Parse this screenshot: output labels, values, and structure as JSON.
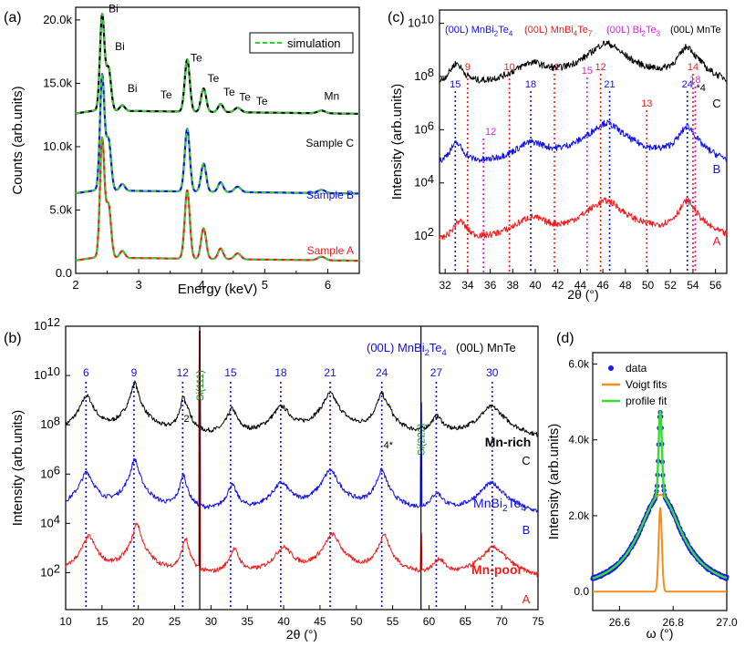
{
  "figure": {
    "panels": {
      "a": {
        "tag": "(a)",
        "xlabel": "Energy (keV)",
        "ylabel": "Counts (arb.units)",
        "xlim": [
          2,
          6.5
        ],
        "ylim": [
          0,
          21000
        ],
        "xticks": [
          {
            "v": 2,
            "t": "2"
          },
          {
            "v": 3,
            "t": "3"
          },
          {
            "v": 4,
            "t": "4"
          },
          {
            "v": 5,
            "t": "5"
          },
          {
            "v": 6,
            "t": "6"
          }
        ],
        "yticks": [
          {
            "v": 0,
            "t": "0.0"
          },
          {
            "v": 5000,
            "t": "5.0k"
          },
          {
            "v": 10000,
            "t": "10.0k"
          },
          {
            "v": 15000,
            "t": "15.0k"
          },
          {
            "v": 20000,
            "t": "20.0k"
          }
        ],
        "legend": "simulation",
        "peak_labels": [
          {
            "t": "Bi",
            "x": 2.48,
            "y": 20900
          },
          {
            "t": "Bi",
            "x": 2.58,
            "y": 17900
          },
          {
            "t": "Bi",
            "x": 2.78,
            "y": 14600
          },
          {
            "t": "Te",
            "x": 3.3,
            "y": 14100
          },
          {
            "t": "Te",
            "x": 3.78,
            "y": 17000
          },
          {
            "t": "Te",
            "x": 4.05,
            "y": 15400
          },
          {
            "t": "Te",
            "x": 4.3,
            "y": 14300
          },
          {
            "t": "Te",
            "x": 4.55,
            "y": 13900
          },
          {
            "t": "Te",
            "x": 4.82,
            "y": 13600
          },
          {
            "t": "Mn",
            "x": 5.9,
            "y": 14000
          }
        ],
        "samples": [
          {
            "label": "Sample C",
            "color": "#000000",
            "offset": 12600
          },
          {
            "label": "Sample B",
            "color": "#1010ee",
            "offset": 6300
          },
          {
            "label": "Sample A",
            "color": "#ee1c1c",
            "offset": 1000
          }
        ],
        "sim_color": "#33cc33"
      },
      "b": {
        "tag": "(b)",
        "xlabel": "2θ (°)",
        "ylabel": "Intensity (arb.units)",
        "xlim": [
          10,
          75
        ],
        "log_ylim": [
          0.5,
          12
        ],
        "xticks": [
          10,
          15,
          20,
          25,
          30,
          35,
          40,
          45,
          50,
          55,
          60,
          65,
          70,
          75
        ],
        "yticks": [
          {
            "e": 2,
            "t": "2"
          },
          {
            "e": 4,
            "t": "4"
          },
          {
            "e": 6,
            "t": "6"
          },
          {
            "e": 8,
            "t": "8"
          },
          {
            "e": 10,
            "t": "10"
          },
          {
            "e": 12,
            "t": "12"
          }
        ],
        "legend_left": "(00L) MnBi",
        "legend_left_sub1": "2",
        "legend_left_mid": "Te",
        "legend_left_sub2": "4",
        "legend_right": "(00L) MnTe",
        "markers": [
          {
            "t": "6",
            "x": 12.8
          },
          {
            "t": "9",
            "x": 19.4
          },
          {
            "t": "12",
            "x": 26.1
          },
          {
            "t": "15",
            "x": 32.7
          },
          {
            "t": "18",
            "x": 39.6
          },
          {
            "t": "21",
            "x": 46.4
          },
          {
            "t": "24",
            "x": 53.5
          },
          {
            "t": "27",
            "x": 61.0
          },
          {
            "t": "30",
            "x": 68.7
          }
        ],
        "si": [
          {
            "t": "Si(111)",
            "x": 28.45
          },
          {
            "t": "Si(222)",
            "x": 58.9
          }
        ],
        "mnte": [
          {
            "t": "2",
            "x": 26.9
          },
          {
            "t": "4",
            "x": 54.4
          }
        ],
        "samples": [
          {
            "name": "Mn-rich",
            "letter": "C",
            "color": "#000000",
            "base": 7.1
          },
          {
            "name": "MnBi",
            "name_sub": "2",
            "name_mid": "Te",
            "name_sub2": "4",
            "letter": "B",
            "color": "#1010ee",
            "base": 4.0
          },
          {
            "name": "Mn-poor",
            "letter": "A",
            "color": "#ee1c1c",
            "base": 1.4
          }
        ]
      },
      "c": {
        "tag": "(c)",
        "xlabel": "2θ (°)",
        "ylabel": "Intensity (arb.units)",
        "xlim": [
          31.5,
          57
        ],
        "log_ylim": [
          0.6,
          10.5
        ],
        "xticks": [
          32,
          34,
          36,
          38,
          40,
          42,
          44,
          46,
          48,
          50,
          52,
          54,
          56
        ],
        "yticks": [
          {
            "e": 2,
            "t": "2"
          },
          {
            "e": 4,
            "t": "4"
          },
          {
            "e": 6,
            "t": "6"
          },
          {
            "e": 8,
            "t": "8"
          },
          {
            "e": 10,
            "t": "10"
          }
        ],
        "legend": [
          {
            "a": "(00L) MnBi",
            "s1": "2",
            "m": "Te",
            "s2": "4",
            "color": "#1010ee"
          },
          {
            "a": "(00L) MnBi",
            "s1": "4",
            "m": "Te",
            "s2": "7",
            "color": "#ee1c1c"
          },
          {
            "a": "(00L) Bi",
            "s1": "2",
            "m": "Te",
            "s2": "3",
            "color": "#e020e0"
          },
          {
            "a": "(00L) MnTe",
            "s1": "",
            "m": "",
            "s2": "",
            "color": "#000000"
          }
        ],
        "blue_markers": [
          {
            "t": "15",
            "x": 32.9
          },
          {
            "t": "18",
            "x": 39.6
          },
          {
            "t": "21",
            "x": 46.6
          },
          {
            "t": "24",
            "x": 53.5
          }
        ],
        "red_markers": [
          {
            "t": "9",
            "x": 34.0
          },
          {
            "t": "10",
            "x": 37.7
          },
          {
            "t": "11",
            "x": 41.7
          },
          {
            "t": "12",
            "x": 45.8
          },
          {
            "t": "13",
            "x": 49.9
          },
          {
            "t": "14",
            "x": 54.0
          }
        ],
        "magenta_markers": [
          {
            "t": "12",
            "x": 35.4
          },
          {
            "t": "15",
            "x": 44.6
          },
          {
            "t": "18",
            "x": 54.2
          }
        ],
        "mnte_markers": [
          {
            "t": "4",
            "x": 53.9
          }
        ],
        "samples": [
          {
            "letter": "C",
            "color": "#000000",
            "base": 7.0
          },
          {
            "letter": "B",
            "color": "#1010ee",
            "base": 4.0
          },
          {
            "letter": "A",
            "color": "#ee1c1c",
            "base": 1.2
          }
        ]
      },
      "d": {
        "tag": "(d)",
        "xlabel": "ω (°)",
        "ylabel": "Intensity (arb.units)",
        "xlim": [
          26.5,
          27.0
        ],
        "ylim": [
          -500,
          6300
        ],
        "xticks": [
          {
            "v": 26.6,
            "t": "26.6"
          },
          {
            "v": 26.8,
            "t": "26.8"
          },
          {
            "v": 27.0,
            "t": "27.0"
          }
        ],
        "yticks": [
          {
            "v": 0,
            "t": "0.0"
          },
          {
            "v": 2000,
            "t": "2.0k"
          },
          {
            "v": 4000,
            "t": "4.0k"
          },
          {
            "v": 6000,
            "t": "6.0k"
          }
        ],
        "legend": [
          {
            "t": "data",
            "color": "#1a1aee",
            "kind": "dot"
          },
          {
            "t": "Voigt fits",
            "color": "#f58c1e",
            "kind": "line"
          },
          {
            "t": "profile fit",
            "color": "#33dd33",
            "kind": "line"
          }
        ]
      }
    }
  }
}
